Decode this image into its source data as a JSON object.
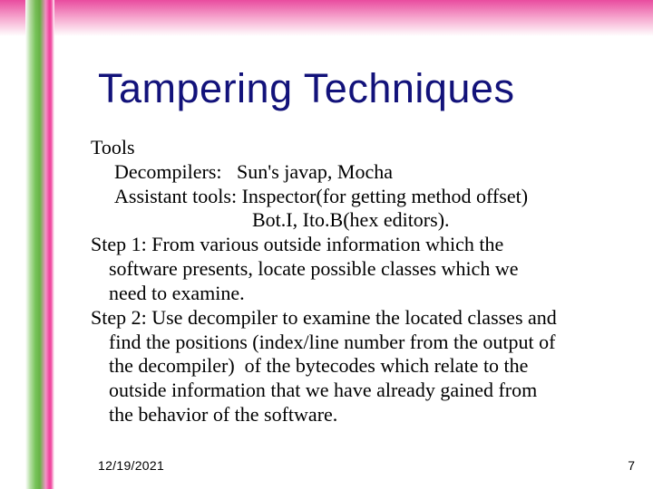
{
  "title": "Tampering Techniques",
  "body": {
    "tools_heading": "Tools",
    "decompilers": "Decompilers:   Sun's javap, Mocha",
    "assistant1": "Assistant tools: Inspector(for getting method offset)",
    "assistant2": "Bot.I, Ito.B(hex editors).",
    "step1a": "Step 1: From various outside information which the",
    "step1b": "software presents, locate possible classes which we",
    "step1c": "need to examine.",
    "step2a": "Step 2: Use decompiler to examine the located classes and",
    "step2b": "find the positions (index/line number from the output of",
    "step2c": "the decompiler)  of the bytecodes which relate to the",
    "step2d": "outside information that we have already gained from",
    "step2e": "the behavior of the software."
  },
  "footer": {
    "date": "12/19/2021",
    "page": "7"
  },
  "colors": {
    "title_color": "#12127a",
    "body_color": "#000000",
    "pink_accent": "#ef3f9a",
    "green_accent": "#6fc050",
    "background": "#ffffff"
  }
}
